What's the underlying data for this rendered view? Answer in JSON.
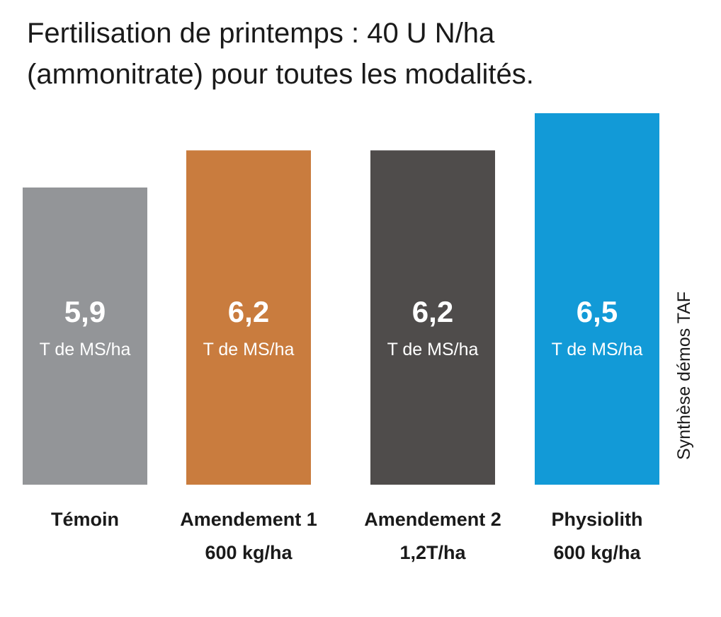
{
  "chart_data": {
    "type": "bar",
    "title_lines": [
      "Fertilisation de printemps : 40 U N/ha",
      "(ammonitrate) pour toutes les modalités."
    ],
    "categories": [
      [
        "Témoin"
      ],
      [
        "Amendement 1",
        "600 kg/ha"
      ],
      [
        "Amendement 2",
        "1,2T/ha"
      ],
      [
        "Physiolith",
        "600 kg/ha"
      ]
    ],
    "values": [
      5.9,
      6.2,
      6.2,
      6.5
    ],
    "value_labels": [
      "5,9",
      "6,2",
      "6,2",
      "6,5"
    ],
    "unit_label": "T de MS/ha",
    "colors": [
      "#939598",
      "#c97c3e",
      "#4f4c4b",
      "#129ad7"
    ],
    "ylim": [
      3.5,
      6.5
    ],
    "grid": false,
    "legend": "none",
    "source": "Synthèse démos TAF"
  }
}
